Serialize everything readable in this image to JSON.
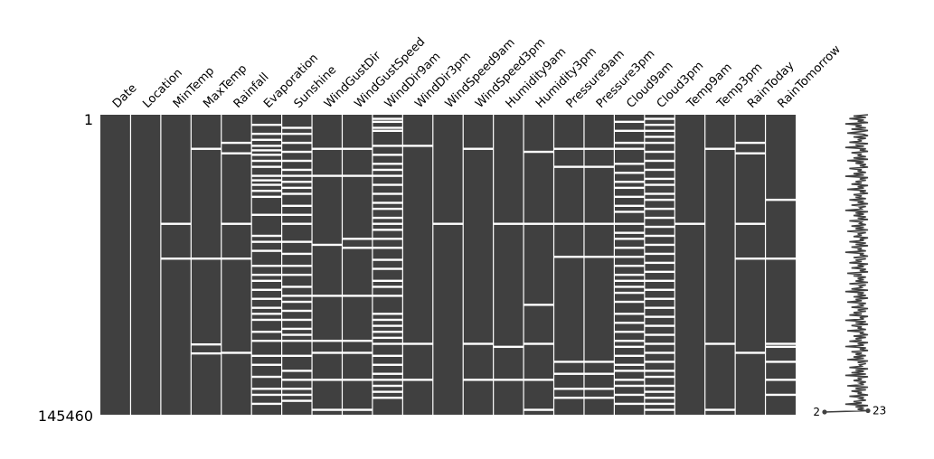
{
  "chart_data": {
    "type": "missingno-matrix",
    "title": "",
    "xlabel": "",
    "ylabel": "",
    "columns": [
      "Date",
      "Location",
      "MinTemp",
      "MaxTemp",
      "Rainfall",
      "Evaporation",
      "Sunshine",
      "WindGustDir",
      "WindGustSpeed",
      "WindDir9am",
      "WindDir3pm",
      "WindSpeed9am",
      "WindSpeed3pm",
      "Humidity9am",
      "Humidity3pm",
      "Pressure9am",
      "Pressure3pm",
      "Cloud9am",
      "Cloud3pm",
      "Temp9am",
      "Temp3pm",
      "RainToday",
      "RainTomorrow"
    ],
    "row_range": [
      1,
      145460
    ],
    "row_labels": [
      "1",
      "145460"
    ],
    "present_color": "#404040",
    "missing_color": "#ffffff",
    "gap_fractions": {
      "Date": [],
      "Location": [],
      "MinTemp": [
        0.36,
        0.476
      ],
      "MaxTemp": [
        0.11,
        0.476,
        0.762,
        0.792
      ],
      "Rainfall": [
        0.09,
        0.125,
        0.36,
        0.476,
        0.79
      ],
      "Evaporation": [
        0.03,
        0.06,
        0.08,
        0.1,
        0.115,
        0.13,
        0.15,
        0.17,
        0.2,
        0.215,
        0.23,
        0.25,
        0.27,
        0.33,
        0.4,
        0.42,
        0.45,
        0.5,
        0.53,
        0.55,
        0.58,
        0.61,
        0.64,
        0.66,
        0.68,
        0.72,
        0.75,
        0.8,
        0.83,
        0.87,
        0.91,
        0.93,
        0.96
      ],
      "Sunshine": [
        0.04,
        0.06,
        0.09,
        0.12,
        0.15,
        0.18,
        0.2,
        0.22,
        0.24,
        0.26,
        0.3,
        0.33,
        0.36,
        0.42,
        0.46,
        0.5,
        0.53,
        0.57,
        0.6,
        0.62,
        0.65,
        0.68,
        0.71,
        0.73,
        0.75,
        0.8,
        0.85,
        0.88,
        0.91,
        0.93,
        0.95
      ],
      "WindGustDir": [
        0.11,
        0.2,
        0.43,
        0.6,
        0.75,
        0.79,
        0.88,
        0.98
      ],
      "WindGustSpeed": [
        0.11,
        0.2,
        0.41,
        0.44,
        0.6,
        0.75,
        0.79,
        0.88,
        0.98
      ],
      "WindDir9am": [
        0.01,
        0.02,
        0.04,
        0.05,
        0.1,
        0.13,
        0.16,
        0.18,
        0.2,
        0.23,
        0.26,
        0.29,
        0.31,
        0.34,
        0.36,
        0.38,
        0.41,
        0.44,
        0.48,
        0.51,
        0.55,
        0.57,
        0.6,
        0.66,
        0.68,
        0.7,
        0.72,
        0.74,
        0.76,
        0.8,
        0.83,
        0.86,
        0.88,
        0.9,
        0.92,
        0.94
      ],
      "WindDir3pm": [
        0.1,
        0.76,
        0.88
      ],
      "WindSpeed9am": [
        0.36
      ],
      "WindSpeed3pm": [
        0.11,
        0.76,
        0.88
      ],
      "Humidity9am": [
        0.36,
        0.77,
        0.88
      ],
      "Humidity3pm": [
        0.12,
        0.36,
        0.63,
        0.76,
        0.88,
        0.98
      ],
      "Pressure9am": [
        0.11,
        0.17,
        0.36,
        0.47,
        0.82,
        0.86,
        0.91,
        0.94
      ],
      "Pressure3pm": [
        0.11,
        0.17,
        0.36,
        0.47,
        0.82,
        0.86,
        0.91,
        0.94
      ],
      "Cloud9am": [
        0.02,
        0.05,
        0.09,
        0.11,
        0.16,
        0.19,
        0.22,
        0.24,
        0.27,
        0.3,
        0.32,
        0.36,
        0.39,
        0.41,
        0.44,
        0.47,
        0.5,
        0.53,
        0.55,
        0.57,
        0.59,
        0.62,
        0.66,
        0.69,
        0.72,
        0.75,
        0.77,
        0.8,
        0.83,
        0.85,
        0.88,
        0.9,
        0.93,
        0.96
      ],
      "Cloud3pm": [
        0.01,
        0.03,
        0.05,
        0.07,
        0.09,
        0.12,
        0.15,
        0.18,
        0.21,
        0.23,
        0.26,
        0.28,
        0.31,
        0.34,
        0.37,
        0.4,
        0.43,
        0.46,
        0.49,
        0.52,
        0.55,
        0.58,
        0.61,
        0.64,
        0.67,
        0.7,
        0.73,
        0.76,
        0.79,
        0.82,
        0.85,
        0.87,
        0.9,
        0.92,
        0.94,
        0.96,
        0.98
      ],
      "Temp9am": [
        0.36
      ],
      "Temp3pm": [
        0.11,
        0.76,
        0.98
      ],
      "RainToday": [
        0.09,
        0.125,
        0.36,
        0.476,
        0.79
      ],
      "RainTomorrow": [
        0.28,
        0.476,
        0.76,
        0.77,
        0.82,
        0.88,
        0.93
      ]
    },
    "sparkline": {
      "min_label": "2",
      "max_label": "23",
      "min_value": 2,
      "max_value": 23,
      "values": [
        23,
        16,
        22,
        14,
        21,
        18,
        23,
        12,
        20,
        17,
        22,
        15,
        23,
        19,
        13,
        21,
        23,
        16,
        22,
        18,
        20,
        14,
        23,
        17,
        21,
        12,
        22,
        19,
        23,
        15,
        20,
        18,
        22,
        16,
        23,
        13,
        21,
        17,
        22,
        19,
        23,
        14,
        20,
        18,
        22,
        16,
        21,
        12,
        23,
        19,
        22,
        17,
        20,
        15,
        23,
        18,
        21,
        13,
        22,
        19,
        23,
        16,
        20,
        17,
        22,
        14,
        21,
        18,
        23,
        15,
        22,
        19,
        20,
        12,
        23,
        17,
        21,
        16,
        22,
        18,
        23,
        14,
        20,
        19,
        22,
        15,
        21,
        17,
        23,
        13,
        22,
        18,
        20,
        16,
        23,
        19,
        21,
        14,
        22,
        17,
        23,
        15,
        20,
        18,
        22,
        12,
        21,
        19,
        23,
        16,
        22,
        17,
        20,
        14,
        23,
        18,
        21,
        15,
        22,
        19,
        23,
        13,
        20,
        16,
        22,
        18,
        21,
        17,
        23,
        14,
        22,
        19,
        20,
        15,
        23,
        12,
        21,
        18,
        22,
        16,
        23,
        17,
        20,
        13,
        22,
        19,
        21,
        15,
        23,
        18,
        22,
        16,
        20,
        14,
        23,
        19,
        21,
        12,
        22,
        17,
        23,
        15,
        20,
        18,
        22,
        13,
        21,
        19,
        23,
        16,
        22,
        17,
        20,
        14,
        23,
        18,
        21,
        12,
        22,
        19,
        23,
        15,
        20,
        17,
        22,
        16,
        21,
        13,
        23,
        18,
        22,
        19,
        20,
        14,
        23,
        17,
        21,
        15,
        22,
        12,
        23,
        18,
        20,
        16,
        22,
        19,
        21,
        13,
        23,
        17,
        22,
        15,
        20,
        18,
        23,
        14,
        21,
        19,
        22,
        16,
        20,
        12,
        23,
        17,
        21,
        18,
        22,
        2
      ]
    }
  }
}
